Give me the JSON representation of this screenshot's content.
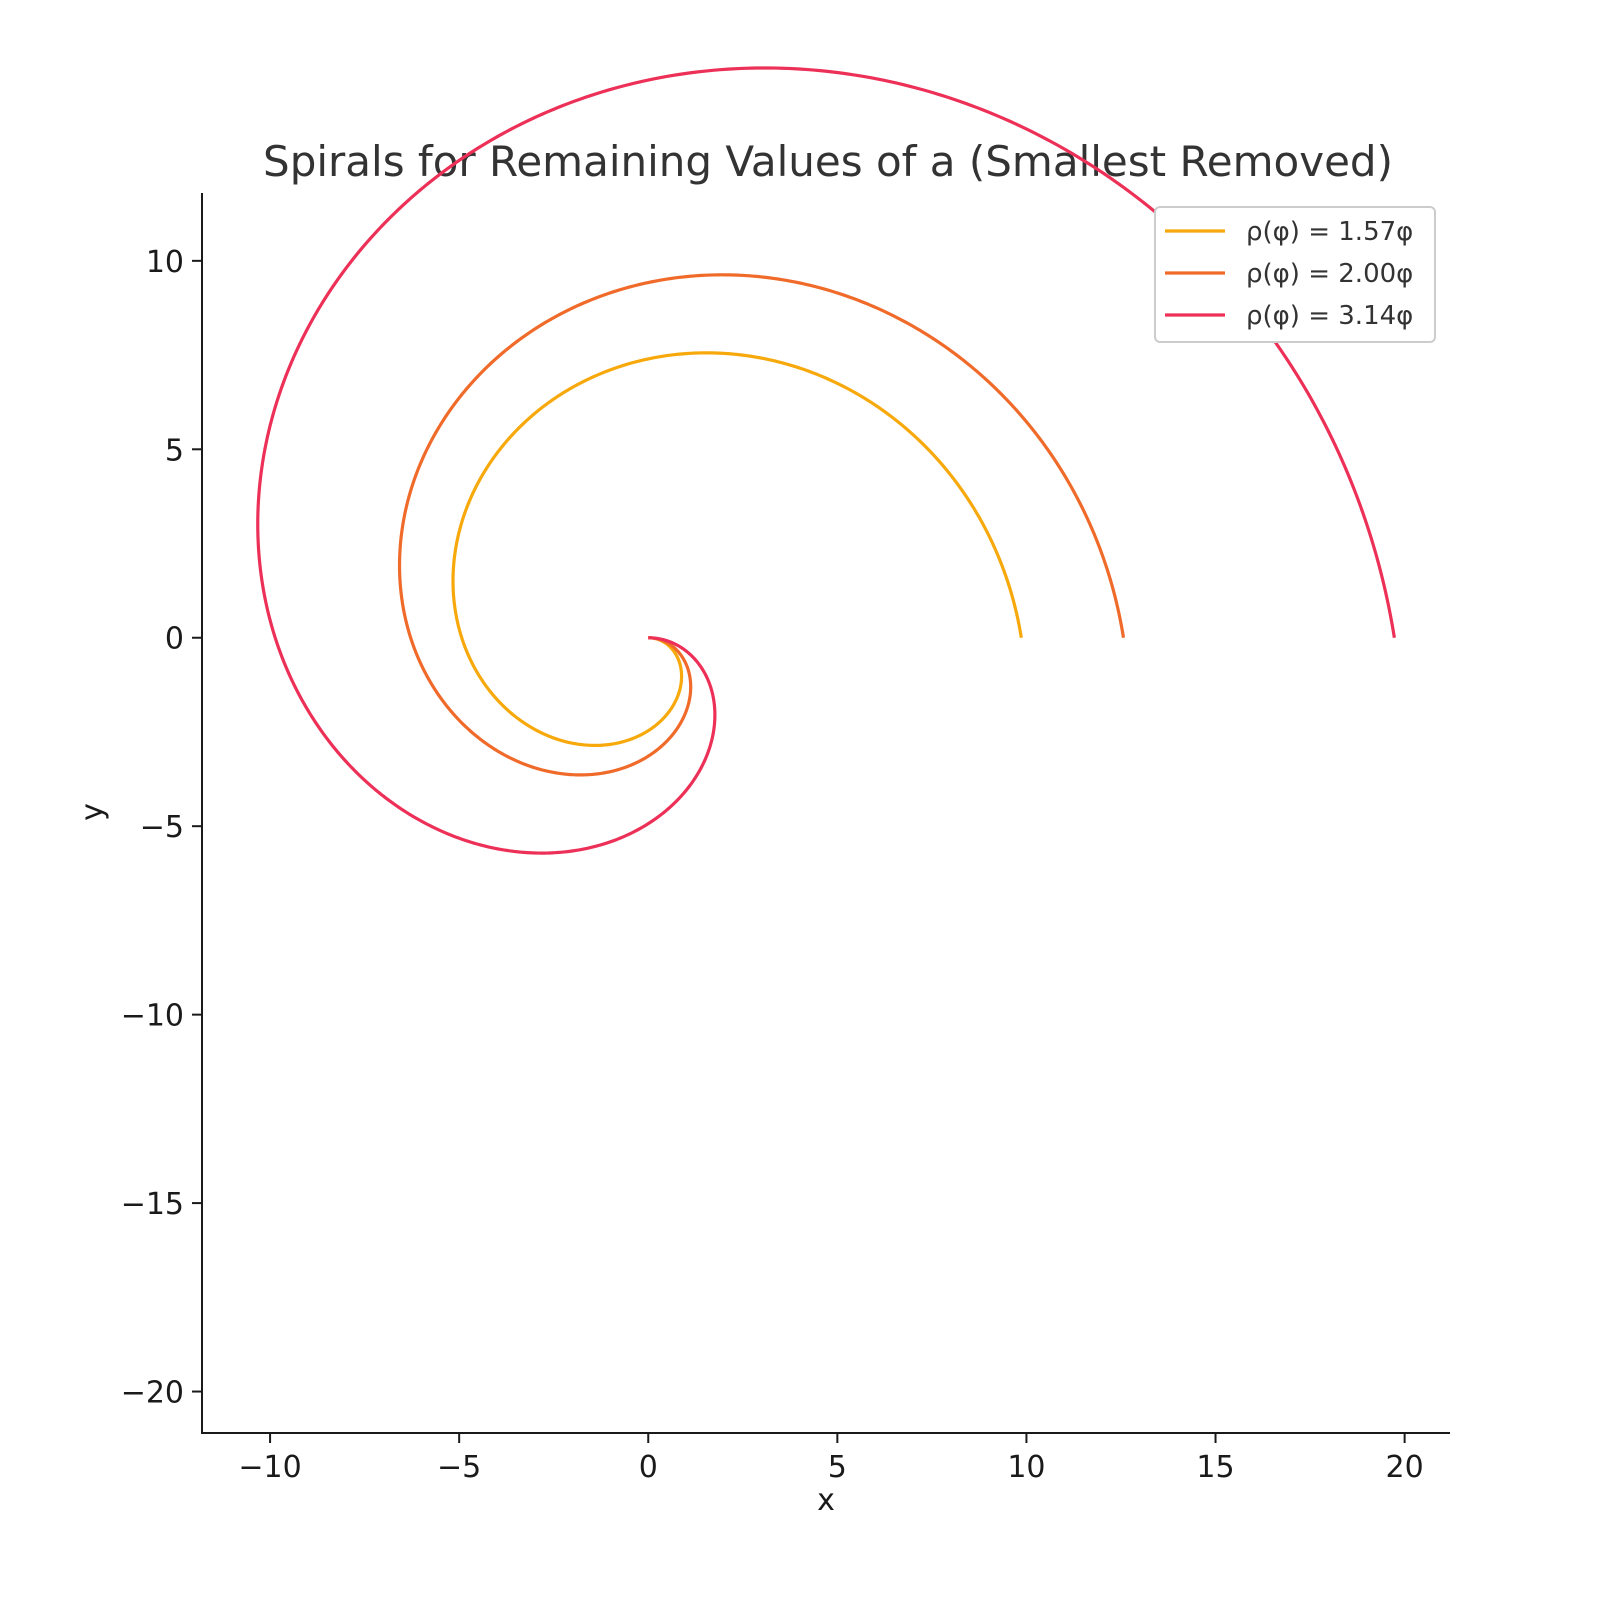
{
  "chart_data": {
    "type": "line",
    "title": "Spirals for Remaining Values of a (Smallest Removed)",
    "xlabel": "x",
    "ylabel": "y",
    "xlim": [
      -11.8,
      21.2
    ],
    "ylim": [
      -21.1,
      11.8
    ],
    "xticks": [
      -10,
      -5,
      0,
      5,
      10,
      15,
      20
    ],
    "yticks": [
      10,
      5,
      0,
      -5,
      -10,
      -15,
      -20
    ],
    "xtick_labels": [
      "−10",
      "−5",
      "0",
      "5",
      "10",
      "15",
      "20"
    ],
    "ytick_labels": [
      "10",
      "5",
      "0",
      "−5",
      "−10",
      "−15",
      "−20"
    ],
    "curve": "archimedean spiral ρ(φ) = aφ, x = ρ·cos(−φ), y = ρ·sin(−φ), φ from 0 to 2π",
    "phi_range": [
      0,
      6.2832
    ],
    "grid": false,
    "legend_position": "top-right",
    "series": [
      {
        "name": "ρ(φ) = 1.57φ",
        "a": 1.57,
        "color": "#f7a90c"
      },
      {
        "name": "ρ(φ) = 2.00φ",
        "a": 2.0,
        "color": "#f06a2a"
      },
      {
        "name": "ρ(φ) = 3.14φ",
        "a": 3.14,
        "color": "#ed3057"
      }
    ]
  }
}
